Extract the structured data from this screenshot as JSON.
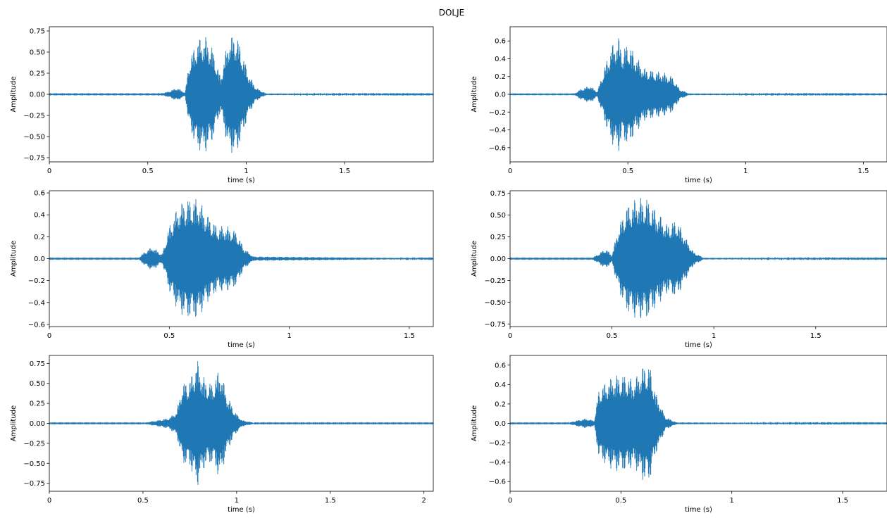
{
  "title": "DOLJE",
  "colors": {
    "waveform": "#1f77b4",
    "axes": "#000000"
  },
  "chart_data": [
    {
      "type": "line",
      "xlabel": "time (s)",
      "ylabel": "Amplitude",
      "xlim": [
        0,
        1.95
      ],
      "ylim": [
        -0.8,
        0.8
      ],
      "xticks": [
        0,
        0.5,
        1,
        1.5
      ],
      "xtick_labels": [
        "0",
        "0.5",
        "1",
        "1.5"
      ],
      "yticks": [
        -0.75,
        -0.5,
        -0.25,
        0,
        0.25,
        0.5,
        0.75
      ],
      "ytick_labels": [
        "−0.75",
        "−0.50",
        "−0.25",
        "0.00",
        "0.25",
        "0.50",
        "0.75"
      ],
      "series": [
        {
          "envelope": [
            [
              0.0,
              0.005
            ],
            [
              0.55,
              0.005
            ],
            [
              0.6,
              0.03
            ],
            [
              0.65,
              0.08
            ],
            [
              0.69,
              0.02
            ],
            [
              0.71,
              0.4
            ],
            [
              0.75,
              0.65
            ],
            [
              0.79,
              0.7
            ],
            [
              0.83,
              0.55
            ],
            [
              0.87,
              0.2
            ],
            [
              0.91,
              0.68
            ],
            [
              0.95,
              0.72
            ],
            [
              0.98,
              0.5
            ],
            [
              1.01,
              0.25
            ],
            [
              1.05,
              0.08
            ],
            [
              1.1,
              0.01
            ],
            [
              1.95,
              0.005
            ]
          ]
        }
      ]
    },
    {
      "type": "line",
      "xlabel": "time (s)",
      "ylabel": "Amplitude",
      "xlim": [
        0,
        1.6
      ],
      "ylim": [
        -0.76,
        0.76
      ],
      "xticks": [
        0,
        0.5,
        1,
        1.5
      ],
      "xtick_labels": [
        "0",
        "0.5",
        "1",
        "1.5"
      ],
      "yticks": [
        -0.6,
        -0.4,
        -0.2,
        0,
        0.2,
        0.4,
        0.6
      ],
      "ytick_labels": [
        "−0.6",
        "−0.4",
        "−0.2",
        "0.0",
        "0.2",
        "0.4",
        "0.6"
      ],
      "series": [
        {
          "envelope": [
            [
              0.0,
              0.004
            ],
            [
              0.27,
              0.004
            ],
            [
              0.3,
              0.06
            ],
            [
              0.34,
              0.1
            ],
            [
              0.37,
              0.03
            ],
            [
              0.4,
              0.3
            ],
            [
              0.43,
              0.55
            ],
            [
              0.46,
              0.65
            ],
            [
              0.48,
              0.5
            ],
            [
              0.5,
              0.6
            ],
            [
              0.53,
              0.45
            ],
            [
              0.57,
              0.3
            ],
            [
              0.61,
              0.27
            ],
            [
              0.65,
              0.25
            ],
            [
              0.69,
              0.2
            ],
            [
              0.72,
              0.06
            ],
            [
              0.76,
              0.01
            ],
            [
              1.6,
              0.004
            ]
          ]
        }
      ]
    },
    {
      "type": "line",
      "xlabel": "time (s)",
      "ylabel": "Amplitude",
      "xlim": [
        0,
        1.6
      ],
      "ylim": [
        -0.62,
        0.62
      ],
      "xticks": [
        0,
        0.5,
        1,
        1.5
      ],
      "xtick_labels": [
        "0",
        "0.5",
        "1",
        "1.5"
      ],
      "yticks": [
        -0.6,
        -0.4,
        -0.2,
        0,
        0.2,
        0.4,
        0.6
      ],
      "ytick_labels": [
        "−0.6",
        "−0.4",
        "−0.2",
        "0.0",
        "0.2",
        "0.4",
        "0.6"
      ],
      "series": [
        {
          "envelope": [
            [
              0.0,
              0.004
            ],
            [
              0.37,
              0.004
            ],
            [
              0.4,
              0.07
            ],
            [
              0.43,
              0.11
            ],
            [
              0.47,
              0.04
            ],
            [
              0.5,
              0.3
            ],
            [
              0.54,
              0.5
            ],
            [
              0.58,
              0.55
            ],
            [
              0.62,
              0.55
            ],
            [
              0.66,
              0.4
            ],
            [
              0.7,
              0.3
            ],
            [
              0.74,
              0.3
            ],
            [
              0.78,
              0.25
            ],
            [
              0.81,
              0.1
            ],
            [
              0.85,
              0.02
            ],
            [
              1.6,
              0.004
            ]
          ]
        }
      ]
    },
    {
      "type": "line",
      "xlabel": "time (s)",
      "ylabel": "Amplitude",
      "xlim": [
        0,
        1.85
      ],
      "ylim": [
        -0.78,
        0.78
      ],
      "xticks": [
        0,
        0.5,
        1,
        1.5
      ],
      "xtick_labels": [
        "0",
        "0.5",
        "1",
        "1.5"
      ],
      "yticks": [
        -0.75,
        -0.5,
        -0.25,
        0,
        0.25,
        0.5,
        0.75
      ],
      "ytick_labels": [
        "−0.75",
        "−0.50",
        "−0.25",
        "0.00",
        "0.25",
        "0.50",
        "0.75"
      ],
      "series": [
        {
          "envelope": [
            [
              0.0,
              0.005
            ],
            [
              0.4,
              0.005
            ],
            [
              0.43,
              0.05
            ],
            [
              0.47,
              0.12
            ],
            [
              0.5,
              0.04
            ],
            [
              0.53,
              0.35
            ],
            [
              0.57,
              0.6
            ],
            [
              0.62,
              0.7
            ],
            [
              0.67,
              0.7
            ],
            [
              0.72,
              0.55
            ],
            [
              0.77,
              0.4
            ],
            [
              0.82,
              0.45
            ],
            [
              0.86,
              0.25
            ],
            [
              0.9,
              0.08
            ],
            [
              0.95,
              0.01
            ],
            [
              1.85,
              0.005
            ]
          ]
        }
      ]
    },
    {
      "type": "line",
      "xlabel": "time (s)",
      "ylabel": "Amplitude",
      "xlim": [
        0,
        2.05
      ],
      "ylim": [
        -0.85,
        0.85
      ],
      "xticks": [
        0,
        0.5,
        1,
        1.5,
        2
      ],
      "xtick_labels": [
        "0",
        "0.5",
        "1",
        "1.5",
        "2"
      ],
      "yticks": [
        -0.75,
        -0.5,
        -0.25,
        0,
        0.25,
        0.5,
        0.75
      ],
      "ytick_labels": [
        "−0.75",
        "−0.50",
        "−0.25",
        "0.00",
        "0.25",
        "0.50",
        "0.75"
      ],
      "series": [
        {
          "envelope": [
            [
              0.0,
              0.005
            ],
            [
              0.5,
              0.005
            ],
            [
              0.58,
              0.04
            ],
            [
              0.64,
              0.07
            ],
            [
              0.68,
              0.15
            ],
            [
              0.71,
              0.5
            ],
            [
              0.75,
              0.55
            ],
            [
              0.79,
              0.8
            ],
            [
              0.83,
              0.55
            ],
            [
              0.87,
              0.5
            ],
            [
              0.91,
              0.7
            ],
            [
              0.95,
              0.35
            ],
            [
              0.99,
              0.15
            ],
            [
              1.03,
              0.04
            ],
            [
              1.1,
              0.005
            ],
            [
              2.05,
              0.005
            ]
          ]
        }
      ]
    },
    {
      "type": "line",
      "xlabel": "time (s)",
      "ylabel": "Amplitude",
      "xlim": [
        0,
        1.7
      ],
      "ylim": [
        -0.7,
        0.7
      ],
      "xticks": [
        0,
        0.5,
        1,
        1.5
      ],
      "xtick_labels": [
        "0",
        "0.5",
        "1",
        "1.5"
      ],
      "yticks": [
        -0.6,
        -0.4,
        -0.2,
        0,
        0.2,
        0.4,
        0.6
      ],
      "ytick_labels": [
        "−0.6",
        "−0.4",
        "−0.2",
        "0.0",
        "0.2",
        "0.4",
        "0.6"
      ],
      "series": [
        {
          "envelope": [
            [
              0.0,
              0.004
            ],
            [
              0.26,
              0.004
            ],
            [
              0.3,
              0.03
            ],
            [
              0.34,
              0.05
            ],
            [
              0.38,
              0.03
            ],
            [
              0.4,
              0.35
            ],
            [
              0.44,
              0.45
            ],
            [
              0.48,
              0.5
            ],
            [
              0.52,
              0.5
            ],
            [
              0.56,
              0.45
            ],
            [
              0.6,
              0.6
            ],
            [
              0.63,
              0.6
            ],
            [
              0.66,
              0.3
            ],
            [
              0.7,
              0.07
            ],
            [
              0.75,
              0.01
            ],
            [
              1.7,
              0.004
            ]
          ]
        }
      ]
    }
  ]
}
